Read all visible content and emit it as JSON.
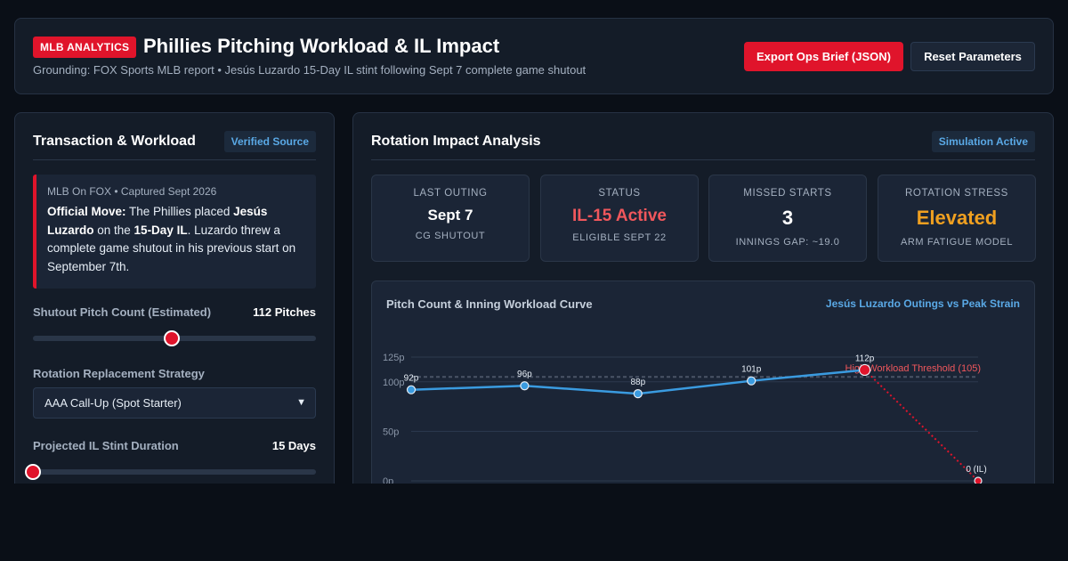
{
  "header": {
    "badge": "MLB ANALYTICS",
    "title": "Phillies Pitching Workload & IL Impact",
    "subtitle": "Grounding: FOX Sports MLB report • Jesús Luzardo 15-Day IL stint following Sept 7 complete game shutout",
    "export_label": "Export Ops Brief (JSON)",
    "reset_label": "Reset Parameters"
  },
  "left_panel": {
    "title": "Transaction & Workload",
    "tag": "Verified Source",
    "note": {
      "meta": "MLB On FOX • Captured Sept 2026",
      "lead": "Official Move:",
      "t1": " The Phillies placed ",
      "player": "Jesús Luzardo",
      "t2": " on the ",
      "il": "15-Day IL",
      "t3": ". Luzardo threw a complete game shutout in his previous start on September 7th."
    },
    "pitch_count": {
      "label": "Shutout Pitch Count (Estimated)",
      "value": "112 Pitches",
      "level": 0.49
    },
    "strategy": {
      "label": "Rotation Replacement Strategy",
      "selected": "AAA Call-Up (Spot Starter)"
    },
    "il_duration": {
      "label": "Projected IL Stint Duration",
      "value": "15 Days",
      "level": 0.0
    }
  },
  "right_panel": {
    "title": "Rotation Impact Analysis",
    "tag": "Simulation Active",
    "stats": [
      {
        "label": "LAST OUTING",
        "value": "Sept 7",
        "sub": "CG SHUTOUT",
        "color": "#ffffff"
      },
      {
        "label": "STATUS",
        "value": "IL-15 Active",
        "sub": "ELIGIBLE SEPT 22",
        "color": "#f0575c"
      },
      {
        "label": "MISSED STARTS",
        "value": "3",
        "sub": "INNINGS GAP: ~19.0",
        "color": "#ffffff"
      },
      {
        "label": "ROTATION STRESS",
        "value": "Elevated",
        "sub": "ARM FATIGUE MODEL",
        "color": "#f0a020"
      }
    ],
    "chart_title": "Pitch Count & Inning Workload Curve",
    "chart_legend": "Jesús Luzardo Outings vs Peak Strain"
  },
  "chart_data": {
    "type": "line",
    "x": [
      1,
      2,
      3,
      4,
      5,
      6
    ],
    "values": [
      92,
      96,
      88,
      101,
      112,
      0
    ],
    "point_labels": [
      "92p",
      "96p",
      "88p",
      "101p",
      "112p",
      "0 (IL)"
    ],
    "y_ticks": [
      0,
      50,
      100,
      125
    ],
    "y_tick_labels": [
      "0p",
      "50p",
      "100p",
      "125p"
    ],
    "ylim": [
      0,
      125
    ],
    "threshold": {
      "value": 105,
      "label": "High Workload Threshold (105)"
    },
    "grid": true,
    "colors": {
      "line": "#3a9be0",
      "peak": "#e0142b",
      "threshold": "#f0575c"
    }
  }
}
